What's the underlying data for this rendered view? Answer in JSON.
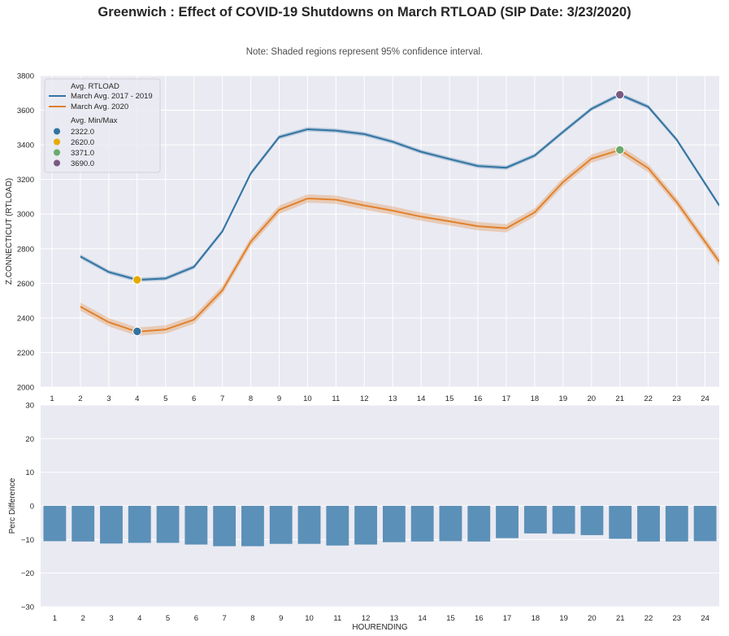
{
  "title": "Greenwich : Effect of COVID-19 Shutdowns on March RTLOAD (SIP Date: 3/23/2020)",
  "note": "Note: Shaded regions represent 95% confidence interval.",
  "colors": {
    "series1": "#3274a1",
    "series2": "#e1812c",
    "bars": "#5b90b8",
    "plot_bg": "#eaeaf2",
    "grid": "#ffffff"
  },
  "chart_data": [
    {
      "type": "line",
      "ylabel": "Z.CONNECTICUT (RTLOAD)",
      "xlabel": "",
      "x": [
        1,
        2,
        3,
        4,
        5,
        6,
        7,
        8,
        9,
        10,
        11,
        12,
        13,
        14,
        15,
        16,
        17,
        18,
        19,
        20,
        21,
        22,
        23,
        24
      ],
      "xlim": [
        0.6,
        24.5
      ],
      "ylim": [
        2000,
        3800
      ],
      "yticks": [
        2000,
        2200,
        2400,
        2600,
        2800,
        3000,
        3200,
        3400,
        3600,
        3800
      ],
      "legend_title": "Avg. RTLOAD",
      "series": [
        {
          "name": "March Avg. 2017 - 2019",
          "color": "#3274a1",
          "ci": 12,
          "x": [
            2,
            3,
            4,
            5,
            6,
            7,
            8,
            9,
            10,
            11,
            12,
            13,
            14,
            15,
            16,
            17,
            18,
            19,
            20,
            21,
            22,
            23,
            24.5
          ],
          "values": [
            2755,
            2665,
            2620,
            2628,
            2695,
            2900,
            3235,
            3445,
            3490,
            3482,
            3462,
            3418,
            3360,
            3318,
            3278,
            3268,
            3338,
            3475,
            3608,
            3690,
            3620,
            3430,
            3050
          ]
        },
        {
          "name": "March Avg. 2020",
          "color": "#e1812c",
          "ci": 24,
          "x": [
            2,
            3,
            4,
            5,
            6,
            7,
            8,
            9,
            10,
            11,
            12,
            13,
            14,
            15,
            16,
            17,
            18,
            19,
            20,
            21,
            22,
            23,
            24.5
          ],
          "values": [
            2465,
            2375,
            2320,
            2333,
            2390,
            2560,
            2840,
            3025,
            3090,
            3083,
            3050,
            3020,
            2985,
            2958,
            2930,
            2918,
            3010,
            3185,
            3320,
            3371,
            3265,
            3070,
            2725
          ]
        }
      ],
      "minmax_legend_title": "Avg. Min/Max",
      "minmax_points": [
        {
          "label": "2322.0",
          "x": 4,
          "y": 2322,
          "color": "#3274a1"
        },
        {
          "label": "2620.0",
          "x": 4,
          "y": 2620,
          "color": "#e6ab02"
        },
        {
          "label": "3371.0",
          "x": 21,
          "y": 3371,
          "color": "#6aaa6e"
        },
        {
          "label": "3690.0",
          "x": 21,
          "y": 3690,
          "color": "#7a5a82"
        }
      ]
    },
    {
      "type": "bar",
      "ylabel": "Perc Difference",
      "xlabel": "HOURENDING",
      "categories": [
        "1",
        "2",
        "3",
        "4",
        "5",
        "6",
        "7",
        "8",
        "9",
        "10",
        "11",
        "12",
        "13",
        "14",
        "15",
        "16",
        "17",
        "18",
        "19",
        "20",
        "21",
        "22",
        "23",
        "24"
      ],
      "values": [
        -10.5,
        -10.6,
        -11.2,
        -11.0,
        -11.0,
        -11.5,
        -12.0,
        -12.0,
        -11.3,
        -11.3,
        -11.8,
        -11.5,
        -10.8,
        -10.6,
        -10.5,
        -10.6,
        -9.6,
        -8.2,
        -8.3,
        -8.7,
        -9.8,
        -10.6,
        -10.6,
        -10.5
      ],
      "ylim": [
        -30,
        30
      ],
      "yticks": [
        -30,
        -20,
        -10,
        0,
        10,
        20,
        30
      ]
    }
  ]
}
